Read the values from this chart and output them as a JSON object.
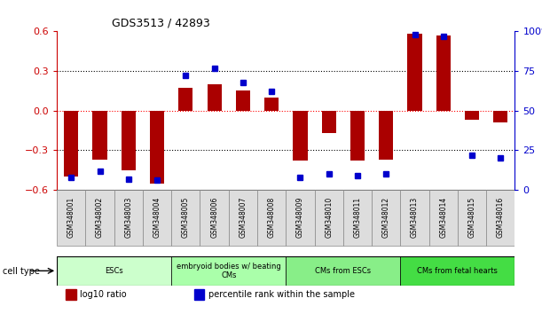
{
  "title": "GDS3513 / 42893",
  "samples": [
    "GSM348001",
    "GSM348002",
    "GSM348003",
    "GSM348004",
    "GSM348005",
    "GSM348006",
    "GSM348007",
    "GSM348008",
    "GSM348009",
    "GSM348010",
    "GSM348011",
    "GSM348012",
    "GSM348013",
    "GSM348014",
    "GSM348015",
    "GSM348016"
  ],
  "log10_ratio": [
    -0.5,
    -0.37,
    -0.45,
    -0.55,
    0.17,
    0.2,
    0.15,
    0.1,
    -0.38,
    -0.17,
    -0.38,
    -0.37,
    0.58,
    0.57,
    -0.07,
    -0.09
  ],
  "percentile_rank": [
    8,
    12,
    7,
    6,
    72,
    77,
    68,
    62,
    8,
    10,
    9,
    10,
    98,
    97,
    22,
    20
  ],
  "bar_color": "#aa0000",
  "dot_color": "#0000cc",
  "ylim_left": [
    -0.6,
    0.6
  ],
  "ylim_right": [
    0,
    100
  ],
  "yticks_left": [
    -0.6,
    -0.3,
    0.0,
    0.3,
    0.6
  ],
  "yticks_right": [
    0,
    25,
    50,
    75,
    100
  ],
  "ytick_labels_right": [
    "0",
    "25",
    "50",
    "75",
    "100%"
  ],
  "cell_type_groups": [
    {
      "label": "ESCs",
      "start": 0,
      "end": 3,
      "color": "#ccffcc"
    },
    {
      "label": "embryoid bodies w/ beating\nCMs",
      "start": 4,
      "end": 7,
      "color": "#aaffaa"
    },
    {
      "label": "CMs from ESCs",
      "start": 8,
      "end": 11,
      "color": "#88ee88"
    },
    {
      "label": "CMs from fetal hearts",
      "start": 12,
      "end": 15,
      "color": "#44dd44"
    }
  ],
  "cell_type_label": "cell type",
  "legend_items": [
    {
      "color": "#aa0000",
      "label": "log10 ratio"
    },
    {
      "color": "#0000cc",
      "label": "percentile rank within the sample"
    }
  ],
  "tick_color_left": "#cc0000",
  "tick_color_right": "#0000cc",
  "background_color": "#ffffff",
  "bar_width": 0.5,
  "dot_size": 5
}
